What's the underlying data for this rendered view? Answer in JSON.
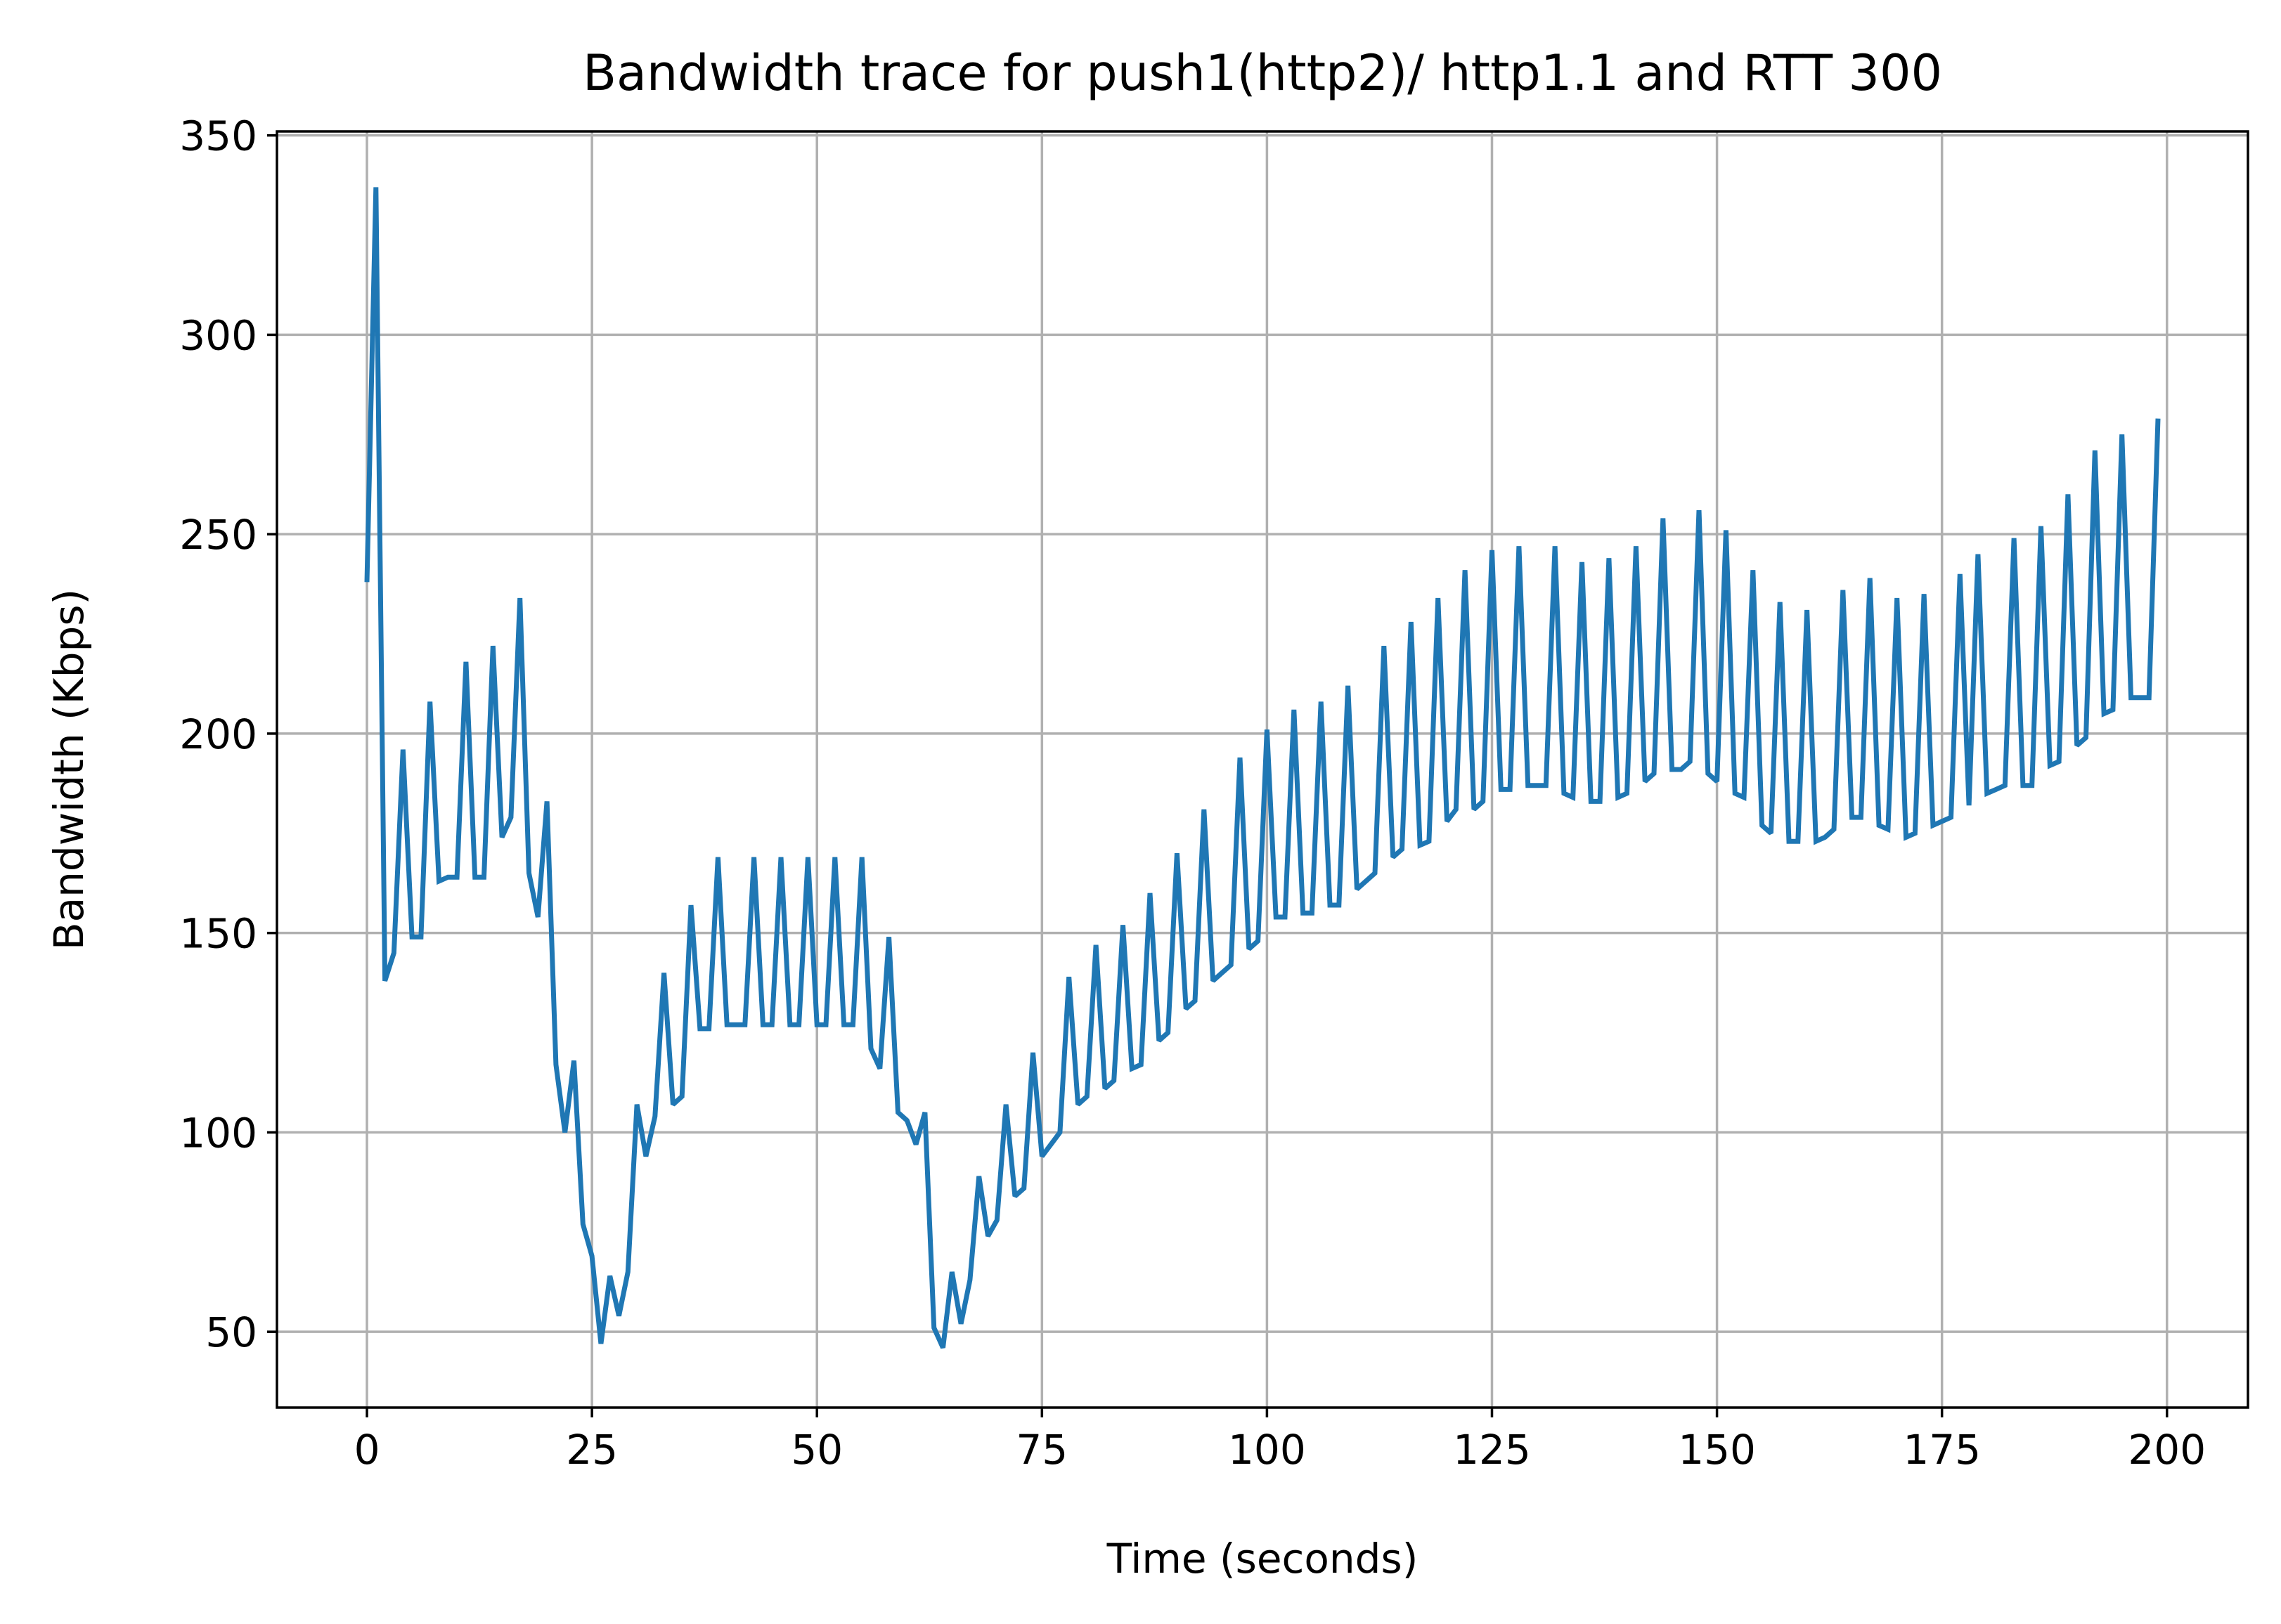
{
  "chart_data": {
    "type": "line",
    "title": "Bandwidth trace for push1(http2)/ http1.1 and RTT 300",
    "xlabel": "Time (seconds)",
    "ylabel": "Bandwidth (Kbps)",
    "xlim": [
      -10,
      209
    ],
    "ylim": [
      31,
      351
    ],
    "x_ticks": [
      0,
      25,
      50,
      75,
      100,
      125,
      150,
      175,
      200
    ],
    "x_tick_labels": [
      "0",
      "25",
      "50",
      "75",
      "100",
      "125",
      "150",
      "175",
      "200"
    ],
    "y_ticks": [
      50,
      100,
      150,
      200,
      250,
      300,
      350
    ],
    "y_tick_labels": [
      "50",
      "100",
      "150",
      "200",
      "250",
      "300",
      "350"
    ],
    "grid": true,
    "line_color": "#1f77b4",
    "series": [
      {
        "x": [
          0,
          1,
          2,
          3,
          4,
          5,
          6,
          7,
          8,
          9,
          10,
          11,
          12,
          13,
          14,
          15,
          16,
          17,
          18,
          19,
          20,
          21,
          22,
          23,
          24,
          25,
          26,
          27,
          28,
          29,
          30,
          31,
          32,
          33,
          34,
          35,
          36,
          37,
          38,
          39,
          40,
          41,
          42,
          43,
          44,
          45,
          46,
          47,
          48,
          49,
          50,
          51,
          52,
          53,
          54,
          55,
          56,
          57,
          58,
          59,
          60,
          61,
          62,
          63,
          64,
          65,
          66,
          67,
          68,
          69,
          70,
          71,
          72,
          73,
          74,
          75,
          76,
          77,
          78,
          79,
          80,
          81,
          82,
          83,
          84,
          85,
          86,
          87,
          88,
          89,
          90,
          91,
          92,
          93,
          94,
          95,
          96,
          97,
          98,
          99,
          100,
          101,
          102,
          103,
          104,
          105,
          106,
          107,
          108,
          109,
          110,
          111,
          112,
          113,
          114,
          115,
          116,
          117,
          118,
          119,
          120,
          121,
          122,
          123,
          124,
          125,
          126,
          127,
          128,
          129,
          130,
          131,
          132,
          133,
          134,
          135,
          136,
          137,
          138,
          139,
          140,
          141,
          142,
          143,
          144,
          145,
          146,
          147,
          148,
          149,
          150,
          151,
          152,
          153,
          154,
          155,
          156,
          157,
          158,
          159,
          160,
          161,
          162,
          163,
          164,
          165,
          166,
          167,
          168,
          169,
          170,
          171,
          172,
          173,
          174,
          175,
          176,
          177,
          178,
          179,
          180,
          181,
          182,
          183,
          184,
          185,
          186,
          187,
          188,
          189,
          190,
          191,
          192,
          193,
          194,
          195,
          196,
          197,
          198,
          199
        ],
        "y": [
          238,
          337,
          138,
          145,
          196,
          149,
          149,
          208,
          163,
          164,
          164,
          218,
          164,
          164,
          222,
          174,
          179,
          234,
          165,
          154,
          183,
          117,
          100,
          118,
          77,
          69,
          47,
          64,
          54,
          65,
          107,
          94,
          104,
          140,
          107,
          109,
          157,
          126,
          126,
          169,
          127,
          127,
          127,
          169,
          127,
          127,
          169,
          127,
          127,
          169,
          127,
          127,
          169,
          127,
          127,
          169,
          121,
          116,
          149,
          105,
          103,
          97,
          105,
          51,
          46,
          65,
          52,
          63,
          89,
          74,
          78,
          107,
          84,
          86,
          120,
          94,
          97,
          100,
          139,
          107,
          109,
          147,
          111,
          113,
          152,
          116,
          117,
          160,
          123,
          125,
          170,
          131,
          133,
          181,
          138,
          140,
          142,
          194,
          146,
          148,
          201,
          154,
          154,
          206,
          155,
          155,
          208,
          157,
          157,
          212,
          161,
          163,
          165,
          222,
          169,
          171,
          228,
          172,
          173,
          234,
          178,
          181,
          241,
          181,
          183,
          246,
          186,
          186,
          247,
          187,
          187,
          187,
          247,
          185,
          184,
          243,
          183,
          183,
          244,
          184,
          185,
          247,
          188,
          190,
          254,
          191,
          191,
          193,
          256,
          190,
          188,
          251,
          185,
          184,
          241,
          177,
          175,
          233,
          173,
          173,
          231,
          173,
          174,
          176,
          236,
          179,
          179,
          239,
          177,
          176,
          234,
          174,
          175,
          235,
          177,
          178,
          179,
          240,
          182,
          245,
          185,
          186,
          187,
          249,
          187,
          187,
          252,
          192,
          193,
          260,
          197,
          199,
          271,
          205,
          206,
          275,
          209,
          209,
          209,
          279
        ]
      }
    ]
  }
}
